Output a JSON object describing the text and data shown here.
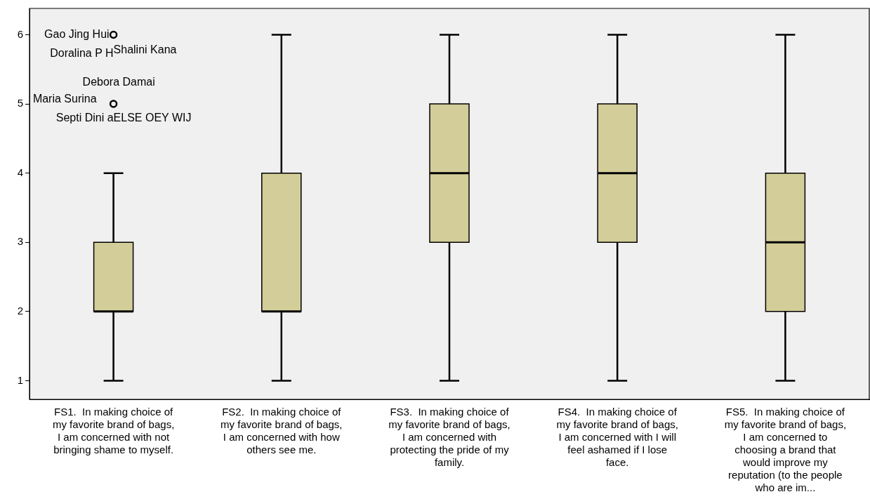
{
  "chart_data": {
    "type": "box",
    "categories": [
      "FS1.  In making choice of my favorite brand of bags, I am concerned with not bringing shame to myself.",
      "FS2.  In making choice of my favorite brand of bags, I am concerned with how others see me.",
      "FS3.  In making choice of my favorite brand of bags, I am concerned with protecting the pride of my family.",
      "FS4.  In making choice of my favorite brand of bags, I am concerned with I will feel ashamed if I lose face.",
      "FS5.  In making choice of my favorite brand of bags, I am concerned to choosing a brand that would improve my reputation (to the people who are im..."
    ],
    "boxes": [
      {
        "low": 1,
        "q1": 2,
        "median": 2,
        "q3": 3,
        "high": 4,
        "outliers": [
          5,
          6
        ]
      },
      {
        "low": 1,
        "q1": 2,
        "median": 2,
        "q3": 4,
        "high": 6
      },
      {
        "low": 1,
        "q1": 3,
        "median": 4,
        "q3": 5,
        "high": 6
      },
      {
        "low": 1,
        "q1": 3,
        "median": 4,
        "q3": 5,
        "high": 6
      },
      {
        "low": 1,
        "q1": 2,
        "median": 3,
        "q3": 4,
        "high": 6
      }
    ],
    "color": "#d3ce99",
    "ylim": [
      0.73,
      6.38
    ],
    "yticks": [
      1,
      2,
      3,
      4,
      5,
      6
    ],
    "grid": false,
    "legend": false,
    "annotations": [
      "Gao Jing Hui",
      "Doralina P H",
      "Shalini Kana",
      "Debora Damai",
      "Maria Surina",
      "Septi Dini a",
      "ELSE OEY WIJ"
    ]
  }
}
